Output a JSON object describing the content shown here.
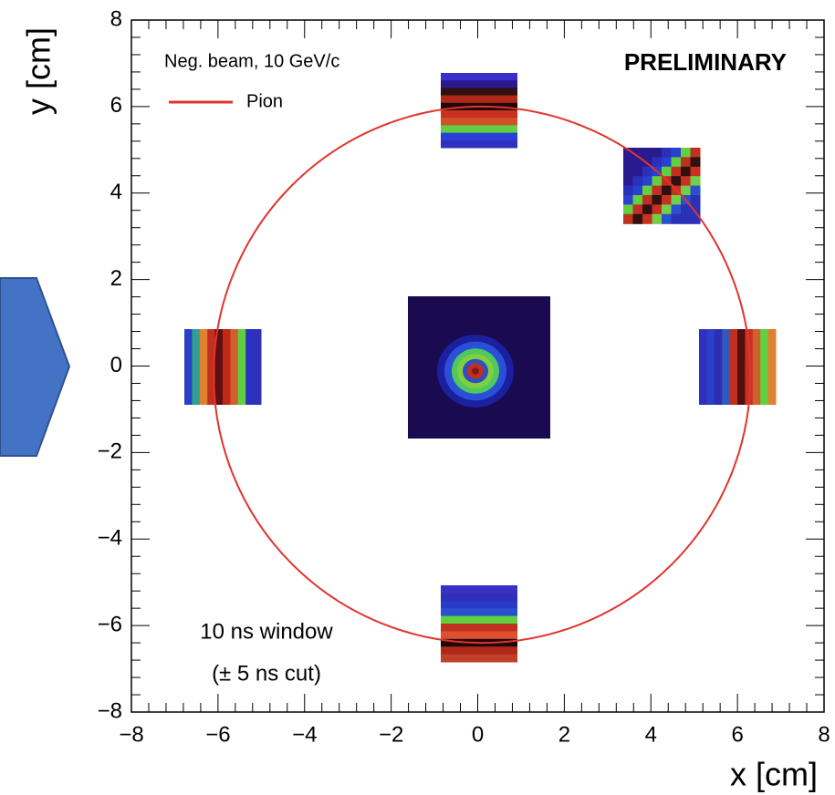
{
  "chart_data": {
    "type": "ring",
    "annotations": [
      "Neg. beam, 10 GeV/c",
      "PRELIMINARY",
      "10 ns window",
      "(± 5 ns cut)"
    ],
    "xlabel": "x [cm]",
    "ylabel": "y [cm]",
    "xlim": [
      -8,
      8
    ],
    "ylim": [
      -8,
      8
    ],
    "xticks": [
      {
        "value": -8,
        "label": "−8"
      },
      {
        "value": -6,
        "label": "−6"
      },
      {
        "value": -4,
        "label": "−4"
      },
      {
        "value": -2,
        "label": "−2"
      },
      0,
      2,
      4,
      6,
      8
    ],
    "yticks": [
      {
        "value": -8,
        "label": "−8"
      },
      {
        "value": -6,
        "label": "−6"
      },
      {
        "value": -4,
        "label": "−4"
      },
      {
        "value": -2,
        "label": "−2"
      },
      0,
      2,
      4,
      6,
      8
    ],
    "series": [
      {
        "name": "Pion",
        "color": "#e0342c",
        "center": [
          0.1,
          -0.2
        ],
        "radius": 6.2
      }
    ]
  }
}
